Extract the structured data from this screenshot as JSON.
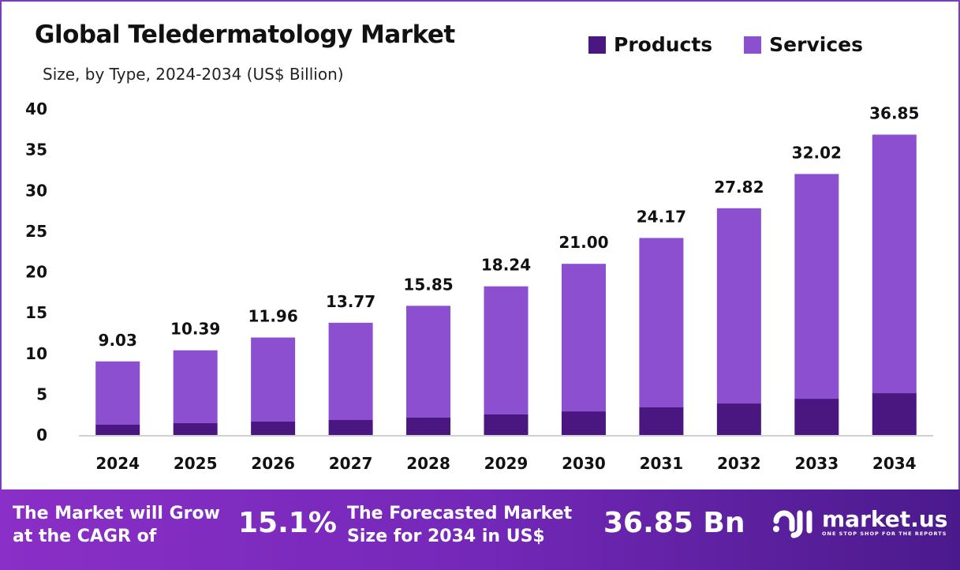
{
  "chart_data": {
    "type": "bar",
    "stacked": true,
    "title": "Global Teledermatology Market",
    "subtitle": "Size, by Type, 2024-2034 (US$ Billion)",
    "categories": [
      "2024",
      "2025",
      "2026",
      "2027",
      "2028",
      "2029",
      "2030",
      "2031",
      "2032",
      "2033",
      "2034"
    ],
    "series": [
      {
        "name": "Products",
        "color": "#4a1680",
        "values": [
          1.26,
          1.45,
          1.65,
          1.84,
          2.13,
          2.52,
          2.9,
          3.39,
          3.87,
          4.45,
          5.13
        ]
      },
      {
        "name": "Services",
        "color": "#8b4fcf",
        "values": [
          7.77,
          8.94,
          10.31,
          11.93,
          13.72,
          15.72,
          18.1,
          20.78,
          23.95,
          27.57,
          31.72
        ]
      }
    ],
    "totals": [
      "9.03",
      "10.39",
      "11.96",
      "13.77",
      "15.85",
      "18.24",
      "21.00",
      "24.17",
      "27.82",
      "32.02",
      "36.85"
    ],
    "yticks": [
      "0",
      "5",
      "10",
      "15",
      "20",
      "25",
      "30",
      "35",
      "40"
    ],
    "ylim": [
      0,
      40
    ],
    "grid": false,
    "legend": "top-right"
  },
  "footer": {
    "cagr_label_1": "The Market will Grow",
    "cagr_label_2": "at the CAGR of",
    "cagr_value": "15.1%",
    "forecast_label_1": "The Forecasted Market",
    "forecast_label_2": "Size for 2034 in US$",
    "forecast_value": "36.85 Bn",
    "logo_name": "market.us",
    "logo_tagline": "ONE STOP SHOP FOR THE REPORTS"
  }
}
